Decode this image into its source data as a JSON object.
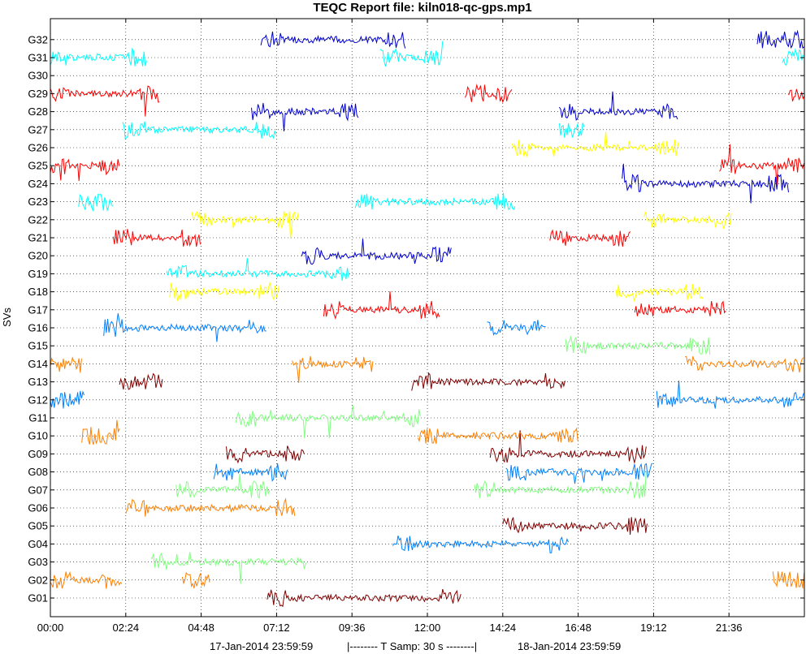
{
  "chart_data": {
    "type": "line",
    "title": "TEQC Report file: kiln018-qc-gps.mp1",
    "ylabel": "SVs",
    "xlabel": "",
    "x_ticks": [
      "00:00",
      "02:24",
      "04:48",
      "07:12",
      "09:36",
      "12:00",
      "14:24",
      "16:48",
      "19:12",
      "21:36"
    ],
    "xlim_hours": [
      0,
      24
    ],
    "y_ticks": [
      "G01",
      "G02",
      "G03",
      "G04",
      "G05",
      "G06",
      "G07",
      "G08",
      "G09",
      "G10",
      "G11",
      "G12",
      "G13",
      "G14",
      "G15",
      "G16",
      "G17",
      "G18",
      "G19",
      "G20",
      "G21",
      "G22",
      "G23",
      "G24",
      "G25",
      "G26",
      "G27",
      "G28",
      "G29",
      "G30",
      "G31",
      "G32"
    ],
    "grid": true,
    "footer": {
      "start": "17-Jan-2014 23:59:59",
      "sampling": "|--------  T Samp: 30 s  --------|",
      "end": "18-Jan-2014 23:59:59"
    },
    "series": [
      {
        "sv": "G01",
        "color": "#800000",
        "segments": [
          [
            6.9,
            13.1
          ]
        ]
      },
      {
        "sv": "G02",
        "color": "#ff8000",
        "segments": [
          [
            0.0,
            2.3
          ],
          [
            4.2,
            5.1
          ],
          [
            23.0,
            24.0
          ]
        ]
      },
      {
        "sv": "G03",
        "color": "#80ff80",
        "segments": [
          [
            3.2,
            8.2
          ]
        ]
      },
      {
        "sv": "G04",
        "color": "#0080ff",
        "segments": [
          [
            10.9,
            16.5
          ]
        ]
      },
      {
        "sv": "G05",
        "color": "#800000",
        "segments": [
          [
            14.4,
            19.0
          ]
        ]
      },
      {
        "sv": "G06",
        "color": "#ff8000",
        "segments": [
          [
            2.4,
            7.8
          ]
        ]
      },
      {
        "sv": "G07",
        "color": "#80ff80",
        "segments": [
          [
            4.0,
            7.0
          ],
          [
            13.5,
            19.0
          ]
        ]
      },
      {
        "sv": "G08",
        "color": "#0080ff",
        "segments": [
          [
            5.2,
            7.6
          ],
          [
            14.5,
            19.2
          ]
        ]
      },
      {
        "sv": "G09",
        "color": "#800000",
        "segments": [
          [
            5.6,
            8.1
          ],
          [
            14.0,
            19.0
          ]
        ]
      },
      {
        "sv": "G10",
        "color": "#ff8000",
        "segments": [
          [
            1.0,
            2.2
          ],
          [
            11.7,
            16.8
          ]
        ]
      },
      {
        "sv": "G11",
        "color": "#80ff80",
        "segments": [
          [
            5.9,
            11.8
          ]
        ]
      },
      {
        "sv": "G12",
        "color": "#0080ff",
        "segments": [
          [
            0.0,
            1.1
          ],
          [
            19.3,
            24.0
          ]
        ]
      },
      {
        "sv": "G13",
        "color": "#800000",
        "segments": [
          [
            2.2,
            3.6
          ],
          [
            11.5,
            16.4
          ]
        ]
      },
      {
        "sv": "G14",
        "color": "#ff8000",
        "segments": [
          [
            0.0,
            1.0
          ],
          [
            7.7,
            10.3
          ],
          [
            20.2,
            24.0
          ]
        ]
      },
      {
        "sv": "G15",
        "color": "#80ff80",
        "segments": [
          [
            16.4,
            21.0
          ]
        ]
      },
      {
        "sv": "G16",
        "color": "#0080ff",
        "segments": [
          [
            1.7,
            6.9
          ],
          [
            13.9,
            15.8
          ]
        ]
      },
      {
        "sv": "G17",
        "color": "#ff0000",
        "segments": [
          [
            8.7,
            12.4
          ],
          [
            18.6,
            21.5
          ]
        ]
      },
      {
        "sv": "G18",
        "color": "#ffff00",
        "segments": [
          [
            3.8,
            7.3
          ],
          [
            18.0,
            20.8
          ]
        ]
      },
      {
        "sv": "G19",
        "color": "#00ffff",
        "segments": [
          [
            3.7,
            9.5
          ]
        ]
      },
      {
        "sv": "G20",
        "color": "#0000cd",
        "segments": [
          [
            8.0,
            12.8
          ]
        ]
      },
      {
        "sv": "G21",
        "color": "#ff0000",
        "segments": [
          [
            2.0,
            4.8
          ],
          [
            15.9,
            18.5
          ]
        ]
      },
      {
        "sv": "G22",
        "color": "#ffff00",
        "segments": [
          [
            4.5,
            7.9
          ],
          [
            18.9,
            21.7
          ]
        ]
      },
      {
        "sv": "G23",
        "color": "#00ffff",
        "segments": [
          [
            0.9,
            2.0
          ],
          [
            9.7,
            14.8
          ]
        ]
      },
      {
        "sv": "G24",
        "color": "#0000cd",
        "segments": [
          [
            18.2,
            23.5
          ]
        ]
      },
      {
        "sv": "G25",
        "color": "#ff0000",
        "segments": [
          [
            0.0,
            2.2
          ],
          [
            21.3,
            24.0
          ]
        ]
      },
      {
        "sv": "G26",
        "color": "#ffff00",
        "segments": [
          [
            14.7,
            20.0
          ]
        ]
      },
      {
        "sv": "G27",
        "color": "#00ffff",
        "segments": [
          [
            2.3,
            7.2
          ],
          [
            16.2,
            17.0
          ]
        ]
      },
      {
        "sv": "G28",
        "color": "#0000cd",
        "segments": [
          [
            6.4,
            9.8
          ],
          [
            16.2,
            20.0
          ]
        ]
      },
      {
        "sv": "G29",
        "color": "#ff0000",
        "segments": [
          [
            0.0,
            3.5
          ],
          [
            13.2,
            14.7
          ],
          [
            23.5,
            24.0
          ]
        ]
      },
      {
        "sv": "G30",
        "color": "#00ffff",
        "segments": []
      },
      {
        "sv": "G31",
        "color": "#00ffff",
        "segments": [
          [
            0.0,
            3.1
          ],
          [
            10.5,
            12.5
          ],
          [
            23.3,
            24.0
          ]
        ]
      },
      {
        "sv": "G32",
        "color": "#0000cd",
        "segments": [
          [
            6.7,
            11.3
          ],
          [
            22.5,
            24.0
          ]
        ]
      }
    ]
  }
}
